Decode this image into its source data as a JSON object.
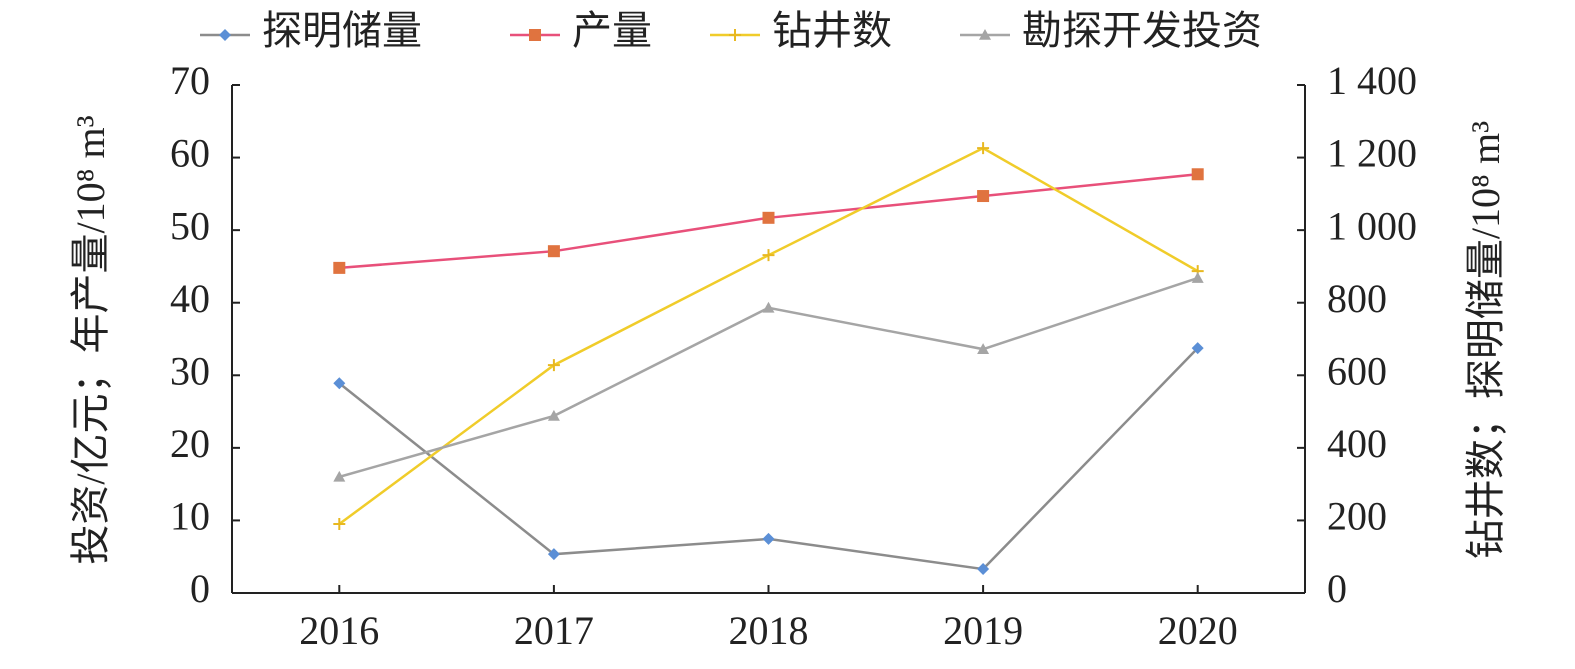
{
  "chart_data": {
    "type": "line",
    "categories": [
      "2016",
      "2017",
      "2018",
      "2019",
      "2020"
    ],
    "y_label": "投资/亿元；年产量/10⁸ m³",
    "y2_label": "钻井数；探明储量/10⁸ m³",
    "ylim": [
      0,
      70
    ],
    "yticks": [
      0,
      10,
      20,
      30,
      40,
      50,
      60,
      70
    ],
    "y2lim": [
      0,
      1400
    ],
    "y2ticks": [
      0,
      200,
      400,
      600,
      800,
      {
        "value": 1000,
        "label": "1 000"
      },
      {
        "value": 1200,
        "label": "1 200"
      },
      {
        "value": 1400,
        "label": "1 400"
      }
    ],
    "legend": "top",
    "series": [
      {
        "name": "探明储量",
        "color": "#8c8c8c",
        "marker_color": "#5b8fd6",
        "marker": "diamond",
        "axis": "y2",
        "values": [
          578,
          107,
          149,
          66,
          675
        ]
      },
      {
        "name": "产量",
        "color": "#e8507a",
        "marker_color": "#e0733f",
        "marker": "square",
        "values": [
          44.8,
          47.1,
          51.7,
          54.7,
          57.7
        ]
      },
      {
        "name": "钻井数",
        "color": "#f0cc2a",
        "marker_color": "#e8b820",
        "marker": "cross",
        "axis": "y2",
        "values": [
          190,
          628,
          931,
          1226,
          887
        ]
      },
      {
        "name": "勘探开发投资",
        "color": "#a5a5a5",
        "marker_color": "#a5a5a5",
        "marker": "triangle",
        "values": [
          16.0,
          24.4,
          39.3,
          33.6,
          43.4
        ]
      }
    ]
  }
}
